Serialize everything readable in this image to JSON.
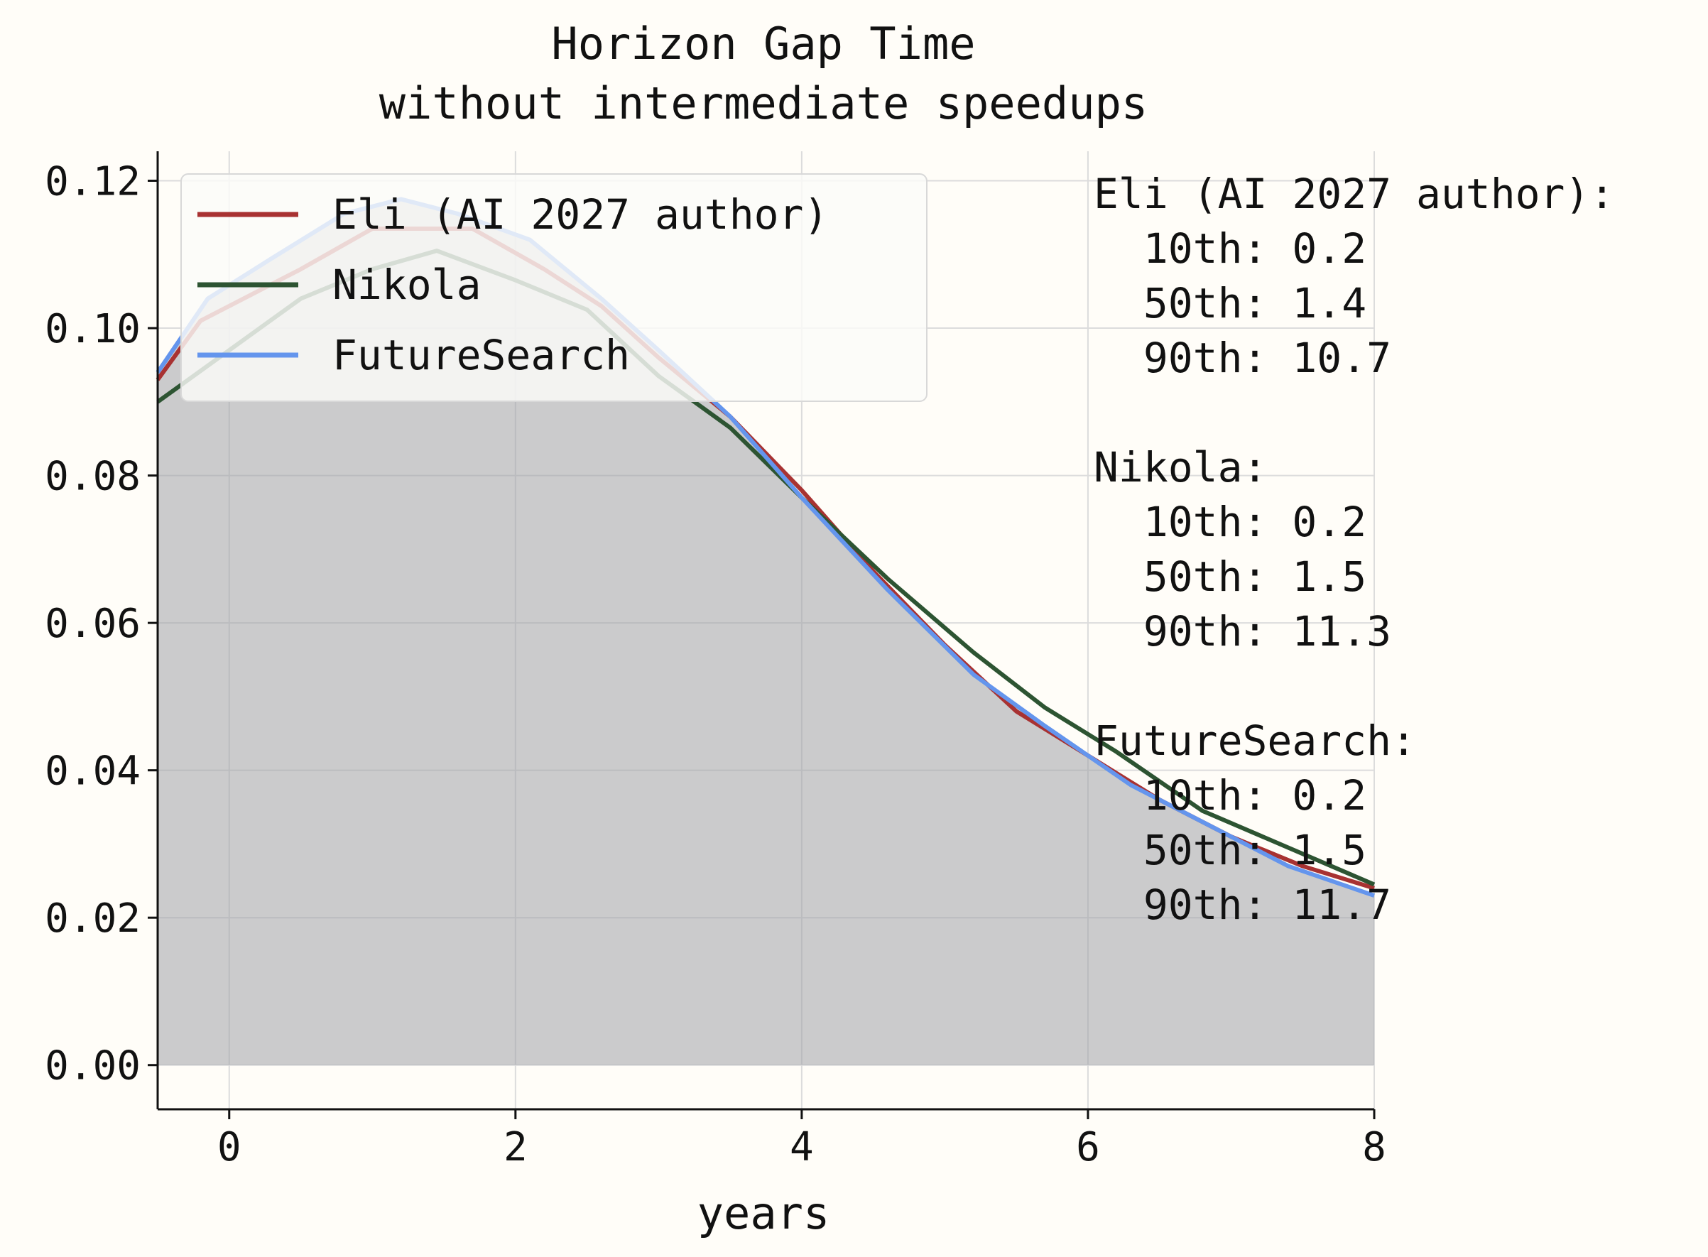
{
  "chart_data": {
    "type": "line",
    "title": "Horizon Gap Time",
    "subtitle": "without intermediate speedups",
    "xlabel": "years",
    "ylabel": "",
    "xlim": [
      -0.5,
      8
    ],
    "ylim": [
      -0.006,
      0.124
    ],
    "xticks": [
      0,
      2,
      4,
      6,
      8
    ],
    "yticks": [
      0.0,
      0.02,
      0.04,
      0.06,
      0.08,
      0.1,
      0.12
    ],
    "xtick_labels": [
      "0",
      "2",
      "4",
      "6",
      "8"
    ],
    "ytick_labels": [
      "0.00",
      "0.02",
      "0.04",
      "0.06",
      "0.08",
      "0.10",
      "0.12"
    ],
    "grid": true,
    "legend_position": "top-left",
    "series": [
      {
        "name": "Eli (AI 2027 author)",
        "color": "#a83232",
        "x": [
          -0.5,
          -0.2,
          0.5,
          1.0,
          1.7,
          2.2,
          2.6,
          3.0,
          3.5,
          4.0,
          4.5,
          5.0,
          5.5,
          6.0,
          6.5,
          7.0,
          7.5,
          8.0
        ],
        "y": [
          0.093,
          0.101,
          0.108,
          0.1135,
          0.1135,
          0.108,
          0.103,
          0.096,
          0.088,
          0.078,
          0.067,
          0.057,
          0.048,
          0.042,
          0.036,
          0.031,
          0.027,
          0.024
        ]
      },
      {
        "name": "Nikola",
        "color": "#2d5432",
        "x": [
          -0.5,
          0.0,
          0.5,
          1.0,
          1.45,
          2.0,
          2.5,
          3.0,
          3.5,
          4.0,
          4.6,
          5.2,
          5.7,
          6.2,
          6.8,
          7.4,
          8.0
        ],
        "y": [
          0.09,
          0.097,
          0.104,
          0.108,
          0.1105,
          0.1065,
          0.1025,
          0.0935,
          0.0865,
          0.077,
          0.066,
          0.056,
          0.0485,
          0.0425,
          0.0345,
          0.0295,
          0.0245
        ]
      },
      {
        "name": "FutureSearch",
        "color": "#6495ed",
        "x": [
          -0.5,
          -0.15,
          0.3,
          0.8,
          1.2,
          1.6,
          2.1,
          2.6,
          3.0,
          3.5,
          4.0,
          4.6,
          5.2,
          5.7,
          6.3,
          6.8,
          7.4,
          8.0
        ],
        "y": [
          0.094,
          0.104,
          0.1095,
          0.1155,
          0.1175,
          0.1155,
          0.112,
          0.104,
          0.097,
          0.088,
          0.077,
          0.0645,
          0.053,
          0.046,
          0.038,
          0.033,
          0.027,
          0.023
        ]
      }
    ],
    "shaded_area": {
      "color": "#a0a2a8",
      "opacity": 0.55
    },
    "annotations": [
      "Eli (AI 2027 author):",
      "  10th: 0.2",
      "  50th: 1.4",
      "  90th: 10.7",
      "",
      "Nikola:",
      "  10th: 0.2",
      "  50th: 1.5",
      "  90th: 11.3",
      "",
      "FutureSearch:",
      "  10th: 0.2",
      "  50th: 1.5",
      "  90th: 11.7"
    ]
  }
}
